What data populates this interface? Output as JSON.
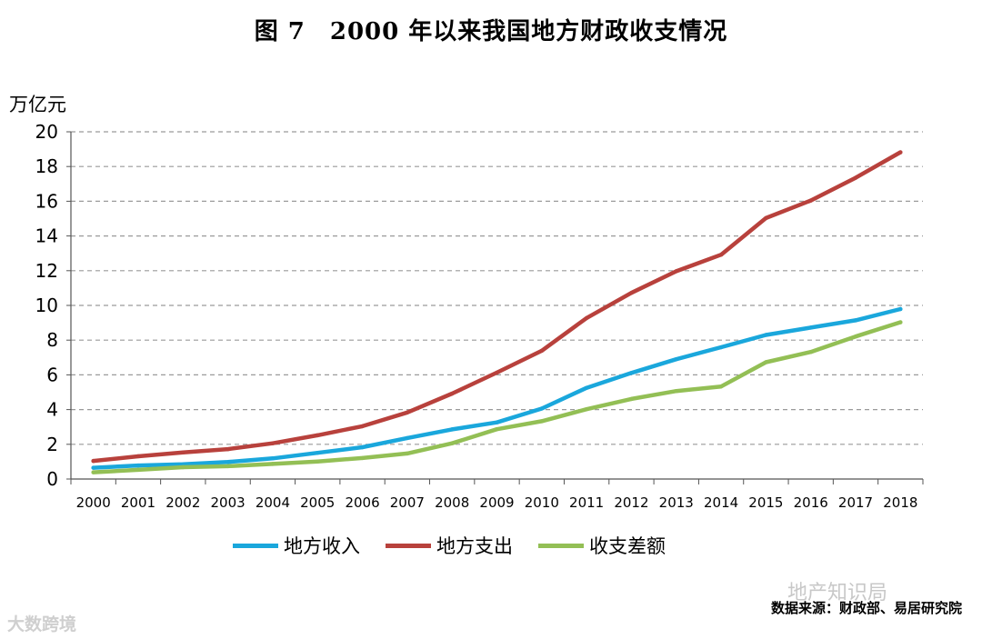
{
  "chart_data": {
    "type": "line",
    "title": "图 7　2000 年以来我国地方财政收支情况",
    "ylabel": "万亿元",
    "xlabel": "",
    "ylim": [
      0,
      20
    ],
    "yticks": [
      0,
      2,
      4,
      6,
      8,
      10,
      12,
      14,
      16,
      18,
      20
    ],
    "grid": true,
    "legend_position": "bottom",
    "categories": [
      "2000",
      "2001",
      "2002",
      "2003",
      "2004",
      "2005",
      "2006",
      "2007",
      "2008",
      "2009",
      "2010",
      "2011",
      "2012",
      "2013",
      "2014",
      "2015",
      "2016",
      "2017",
      "2018"
    ],
    "series": [
      {
        "name": "地方收入",
        "color": "#1aa7dc",
        "values": [
          0.65,
          0.78,
          0.85,
          0.98,
          1.19,
          1.51,
          1.83,
          2.36,
          2.86,
          3.26,
          4.06,
          5.25,
          6.11,
          6.9,
          7.59,
          8.3,
          8.72,
          9.14,
          9.79
        ]
      },
      {
        "name": "地方支出",
        "color": "#b8413c",
        "values": [
          1.04,
          1.31,
          1.53,
          1.72,
          2.06,
          2.52,
          3.04,
          3.83,
          4.92,
          6.13,
          7.39,
          9.27,
          10.72,
          11.97,
          12.92,
          15.03,
          16.04,
          17.35,
          18.82
        ]
      },
      {
        "name": "收支差额",
        "color": "#93bf55",
        "values": [
          0.39,
          0.53,
          0.68,
          0.74,
          0.87,
          1.01,
          1.21,
          1.47,
          2.06,
          2.87,
          3.33,
          4.02,
          4.61,
          5.07,
          5.33,
          6.73,
          7.32,
          8.21,
          9.03
        ]
      }
    ]
  },
  "source": "数据来源：财政部、易居研究院",
  "watermark_right": "地产知识局",
  "watermark_left": "大数跨境"
}
